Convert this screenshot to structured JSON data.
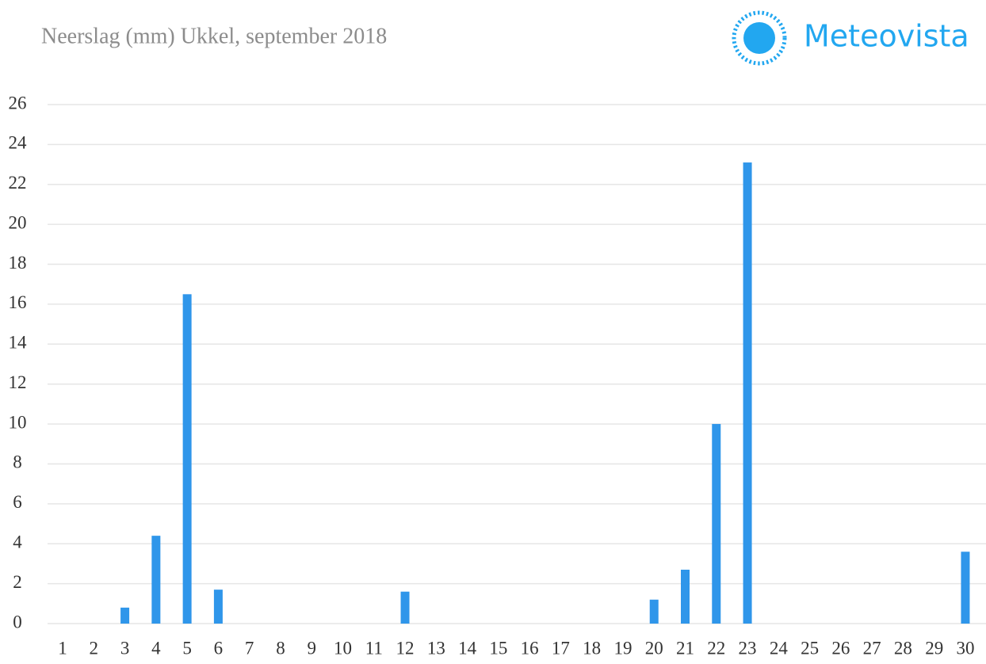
{
  "chart_data": {
    "type": "bar",
    "title": "Neerslag (mm) Ukkel, september 2018",
    "logo": "Meteovista",
    "categories": [
      "1",
      "2",
      "3",
      "4",
      "5",
      "6",
      "7",
      "8",
      "9",
      "10",
      "11",
      "12",
      "13",
      "14",
      "15",
      "16",
      "17",
      "18",
      "19",
      "20",
      "21",
      "22",
      "23",
      "24",
      "25",
      "26",
      "27",
      "28",
      "29",
      "30"
    ],
    "values": [
      0,
      0,
      0.8,
      4.4,
      16.5,
      1.7,
      0,
      0,
      0,
      0,
      0,
      1.6,
      0,
      0,
      0,
      0,
      0,
      0,
      0,
      1.2,
      2.7,
      10.0,
      23.1,
      0,
      0,
      0,
      0,
      0,
      0,
      3.6
    ],
    "color": "#2f96ea",
    "ylim": [
      0,
      26
    ],
    "yticks": [
      0,
      2,
      4,
      6,
      8,
      10,
      12,
      14,
      16,
      18,
      20,
      22,
      24,
      26
    ],
    "grid": true
  }
}
